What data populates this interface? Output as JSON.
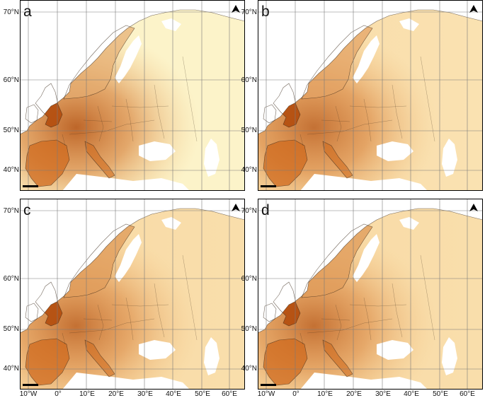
{
  "panels": [
    {
      "letter": "a",
      "variant": 0
    },
    {
      "letter": "b",
      "variant": 1
    },
    {
      "letter": "c",
      "variant": 2
    },
    {
      "letter": "d",
      "variant": 3
    }
  ],
  "lat_labels": [
    "70°N",
    "60°N",
    "50°N",
    "40°N"
  ],
  "lon_labels": [
    "10°W",
    "0°",
    "10°E",
    "20°E",
    "30°E",
    "40°E",
    "50°E",
    "60°E"
  ],
  "colors": {
    "low": "#fcf3c9",
    "mid": "#f2c07d",
    "high": "#cf6a1e",
    "very_high": "#b24d0d",
    "water": "#ffffff",
    "grid": "#7a7a7a"
  },
  "north_arrow_icon": "north-arrow-icon",
  "scale_bar_icon": "scale-bar-icon"
}
